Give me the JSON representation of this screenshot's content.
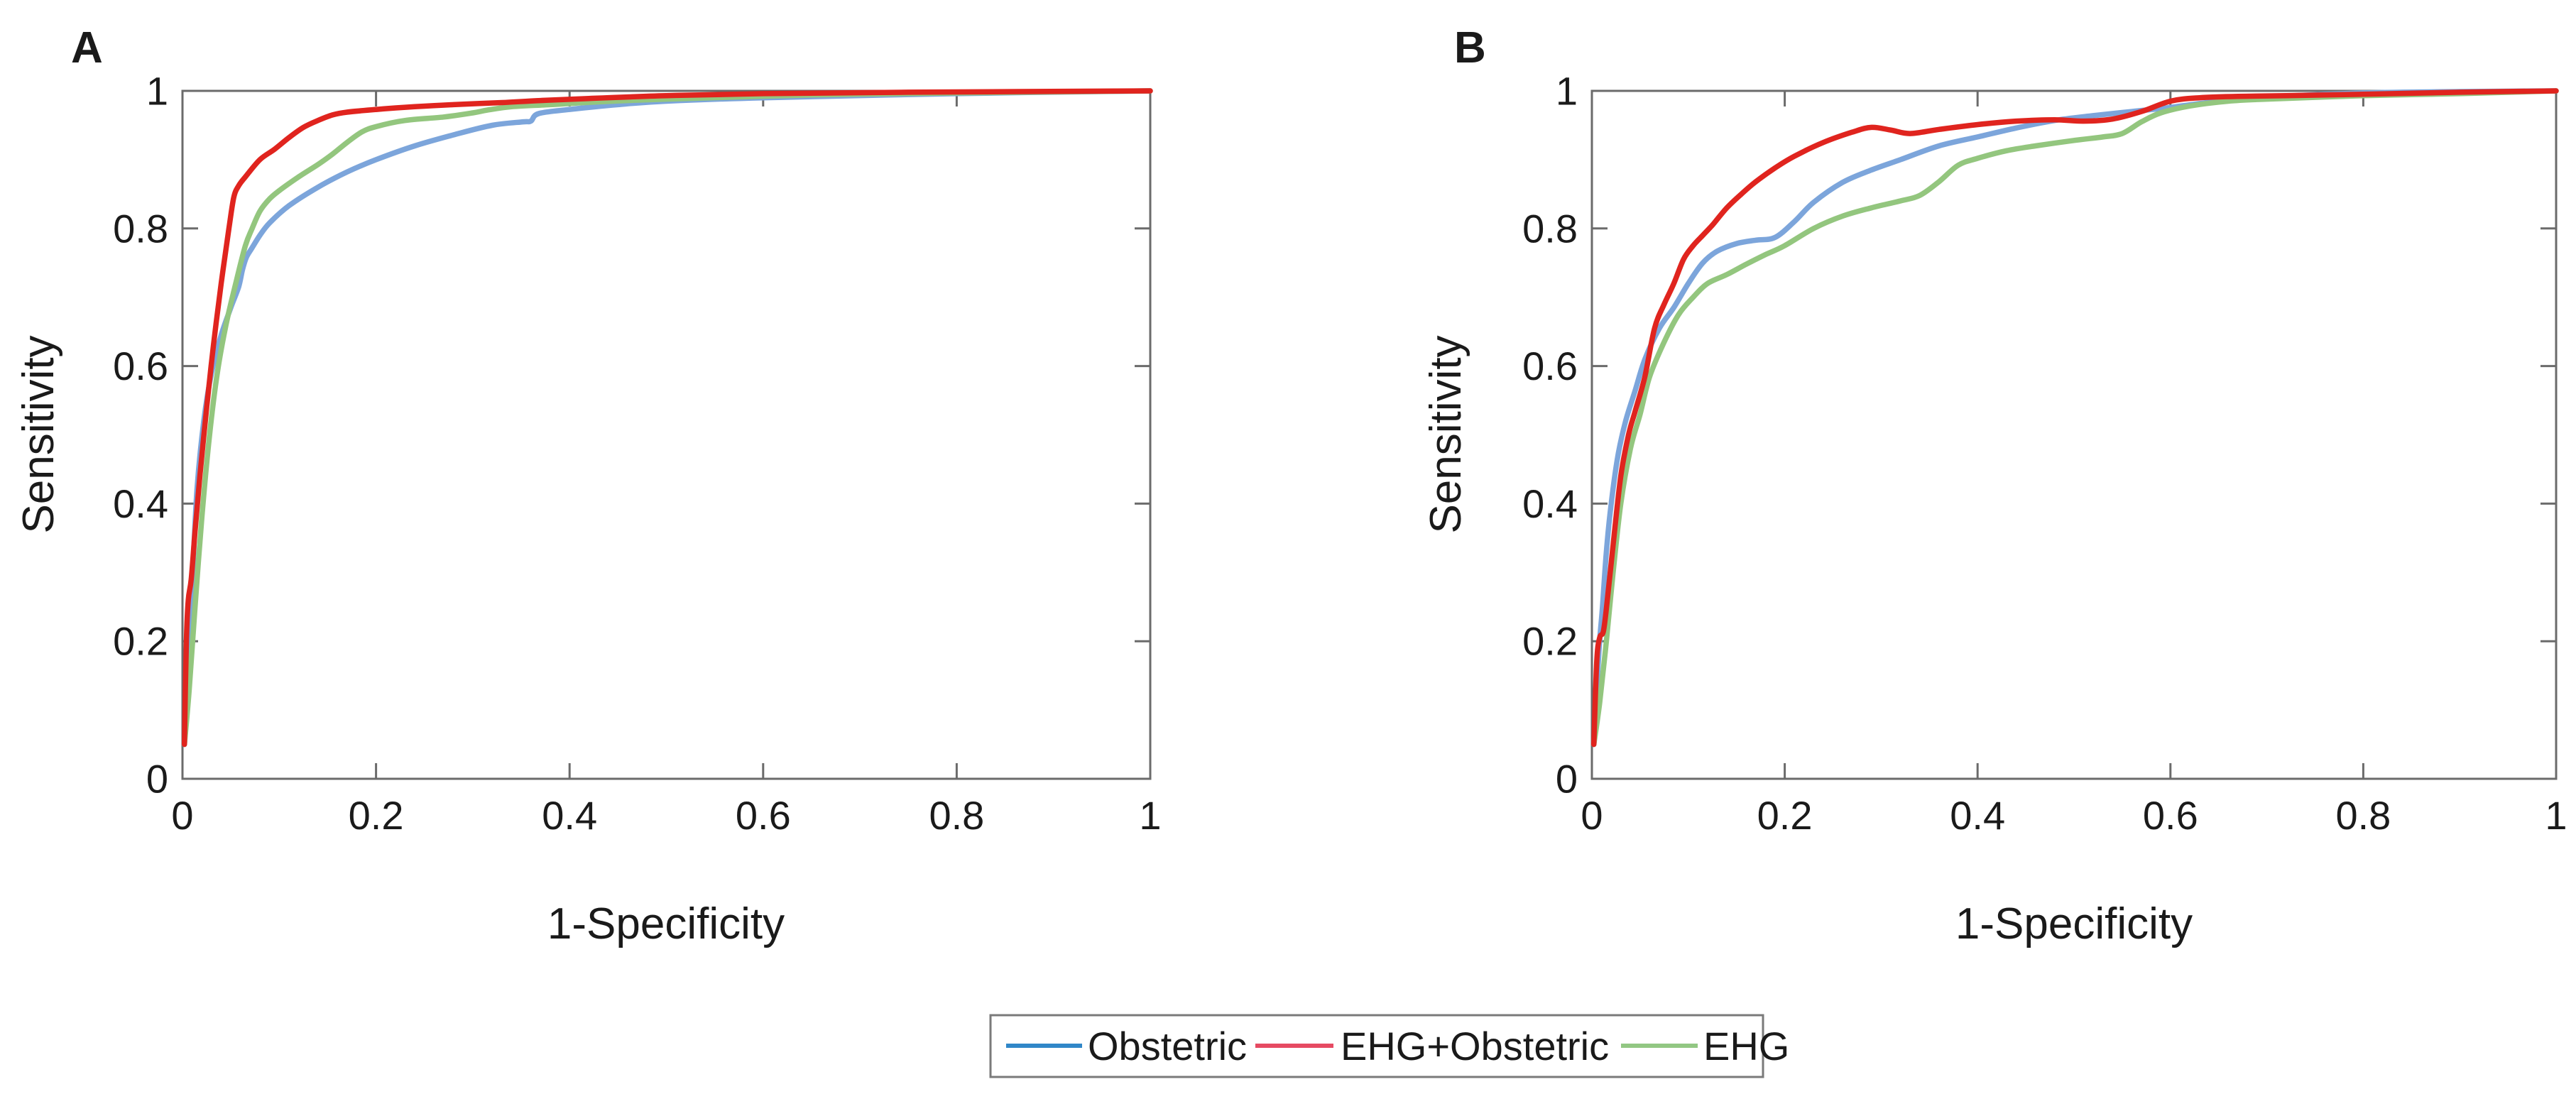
{
  "figure": {
    "background": "#ffffff",
    "axis_color": "#6b6b6b",
    "text_color": "#1a1a1a",
    "xlabel": "1-Specificity",
    "ylabel": "Sensitivity",
    "panels": [
      {
        "label": "A"
      },
      {
        "label": "B"
      }
    ]
  },
  "legend": {
    "items": [
      {
        "label": "Obstetric",
        "color": "#3087c8"
      },
      {
        "label": "EHG+Obstetric",
        "color": "#e64a62"
      },
      {
        "label": "EHG",
        "color": "#92c783"
      }
    ]
  },
  "chart_data": [
    {
      "type": "line",
      "panel": "A",
      "title": "",
      "xlabel": "1-Specificity",
      "ylabel": "Sensitivity",
      "xlim": [
        0,
        1
      ],
      "ylim": [
        0,
        1
      ],
      "grid": false,
      "x_ticks": [
        0,
        0.2,
        0.4,
        0.6,
        0.8,
        1
      ],
      "y_ticks": [
        0,
        0.2,
        0.4,
        0.6,
        0.8,
        1
      ],
      "series": [
        {
          "name": "Obstetric",
          "color": "#7ca5db",
          "x": [
            0.002,
            0.006,
            0.01,
            0.015,
            0.022,
            0.03,
            0.04,
            0.05,
            0.058,
            0.062,
            0.066,
            0.072,
            0.08,
            0.09,
            0.11,
            0.14,
            0.17,
            0.2,
            0.24,
            0.28,
            0.32,
            0.352,
            0.36,
            0.368,
            0.4,
            0.45,
            0.5,
            0.6,
            0.8,
            1.0
          ],
          "y": [
            0.05,
            0.15,
            0.28,
            0.42,
            0.52,
            0.59,
            0.645,
            0.685,
            0.715,
            0.74,
            0.758,
            0.772,
            0.79,
            0.808,
            0.833,
            0.86,
            0.882,
            0.9,
            0.92,
            0.936,
            0.95,
            0.955,
            0.956,
            0.967,
            0.973,
            0.98,
            0.985,
            0.99,
            0.996,
            1.0
          ]
        },
        {
          "name": "EHG",
          "color": "#93c67e",
          "x": [
            0.002,
            0.007,
            0.013,
            0.02,
            0.028,
            0.036,
            0.045,
            0.055,
            0.065,
            0.072,
            0.08,
            0.09,
            0.1,
            0.12,
            0.14,
            0.155,
            0.17,
            0.185,
            0.2,
            0.23,
            0.27,
            0.3,
            0.315,
            0.34,
            0.38,
            0.43,
            0.5,
            0.65,
            0.8,
            1.0
          ],
          "y": [
            0.05,
            0.13,
            0.25,
            0.38,
            0.5,
            0.59,
            0.66,
            0.72,
            0.775,
            0.8,
            0.825,
            0.843,
            0.855,
            0.875,
            0.893,
            0.908,
            0.925,
            0.94,
            0.948,
            0.957,
            0.962,
            0.968,
            0.972,
            0.977,
            0.98,
            0.984,
            0.988,
            0.994,
            0.997,
            1.0
          ]
        },
        {
          "name": "EHG+Obstetric",
          "color": "#e0241e",
          "x": [
            0.002,
            0.004,
            0.006,
            0.009,
            0.013,
            0.018,
            0.025,
            0.032,
            0.04,
            0.048,
            0.053,
            0.058,
            0.065,
            0.08,
            0.095,
            0.11,
            0.125,
            0.14,
            0.155,
            0.17,
            0.2,
            0.24,
            0.28,
            0.33,
            0.37,
            0.42,
            0.5,
            0.6,
            0.75,
            1.0
          ],
          "y": [
            0.05,
            0.2,
            0.26,
            0.29,
            0.36,
            0.44,
            0.54,
            0.63,
            0.72,
            0.8,
            0.845,
            0.862,
            0.875,
            0.9,
            0.915,
            0.932,
            0.947,
            0.957,
            0.965,
            0.969,
            0.973,
            0.977,
            0.98,
            0.983,
            0.986,
            0.989,
            0.993,
            0.996,
            0.998,
            1.0
          ]
        }
      ]
    },
    {
      "type": "line",
      "panel": "B",
      "title": "",
      "xlabel": "1-Specificity",
      "ylabel": "Sensitivity",
      "xlim": [
        0,
        1
      ],
      "ylim": [
        0,
        1
      ],
      "grid": false,
      "x_ticks": [
        0,
        0.2,
        0.4,
        0.6,
        0.8,
        1
      ],
      "y_ticks": [
        0,
        0.2,
        0.4,
        0.6,
        0.8,
        1
      ],
      "series": [
        {
          "name": "Obstetric",
          "color": "#7ca5db",
          "x": [
            0.002,
            0.005,
            0.008,
            0.011,
            0.015,
            0.02,
            0.027,
            0.035,
            0.045,
            0.055,
            0.07,
            0.085,
            0.1,
            0.115,
            0.13,
            0.15,
            0.17,
            0.19,
            0.21,
            0.23,
            0.26,
            0.29,
            0.32,
            0.36,
            0.4,
            0.44,
            0.48,
            0.52,
            0.56,
            0.6,
            0.65,
            0.7,
            0.8,
            0.9,
            1.0
          ],
          "y": [
            0.05,
            0.13,
            0.2,
            0.25,
            0.33,
            0.4,
            0.47,
            0.52,
            0.565,
            0.61,
            0.655,
            0.685,
            0.72,
            0.75,
            0.767,
            0.778,
            0.783,
            0.787,
            0.81,
            0.838,
            0.867,
            0.885,
            0.9,
            0.92,
            0.933,
            0.946,
            0.957,
            0.964,
            0.97,
            0.976,
            0.985,
            0.991,
            0.997,
            0.999,
            1.0
          ]
        },
        {
          "name": "EHG",
          "color": "#93c67e",
          "x": [
            0.002,
            0.008,
            0.015,
            0.022,
            0.03,
            0.04,
            0.05,
            0.06,
            0.075,
            0.09,
            0.105,
            0.12,
            0.14,
            0.16,
            0.18,
            0.2,
            0.23,
            0.26,
            0.29,
            0.32,
            0.34,
            0.36,
            0.38,
            0.4,
            0.43,
            0.46,
            0.5,
            0.53,
            0.55,
            0.57,
            0.59,
            0.62,
            0.66,
            0.7,
            0.8,
            0.9,
            1.0
          ],
          "y": [
            0.05,
            0.11,
            0.2,
            0.3,
            0.4,
            0.48,
            0.53,
            0.585,
            0.635,
            0.675,
            0.7,
            0.72,
            0.733,
            0.748,
            0.762,
            0.775,
            0.8,
            0.818,
            0.83,
            0.84,
            0.848,
            0.868,
            0.892,
            0.902,
            0.913,
            0.92,
            0.928,
            0.933,
            0.938,
            0.955,
            0.968,
            0.978,
            0.985,
            0.988,
            0.993,
            0.996,
            1.0
          ]
        },
        {
          "name": "EHG+Obstetric",
          "color": "#e0241e",
          "x": [
            0.002,
            0.005,
            0.008,
            0.012,
            0.016,
            0.022,
            0.03,
            0.038,
            0.045,
            0.055,
            0.065,
            0.075,
            0.085,
            0.095,
            0.105,
            0.115,
            0.125,
            0.14,
            0.155,
            0.17,
            0.19,
            0.21,
            0.24,
            0.27,
            0.29,
            0.31,
            0.33,
            0.36,
            0.4,
            0.44,
            0.48,
            0.51,
            0.54,
            0.57,
            0.6,
            0.63,
            0.67,
            0.72,
            0.8,
            0.9,
            1.0
          ],
          "y": [
            0.05,
            0.17,
            0.205,
            0.215,
            0.26,
            0.34,
            0.44,
            0.5,
            0.535,
            0.585,
            0.655,
            0.69,
            0.72,
            0.755,
            0.775,
            0.79,
            0.805,
            0.83,
            0.85,
            0.868,
            0.888,
            0.905,
            0.925,
            0.94,
            0.947,
            0.943,
            0.938,
            0.944,
            0.951,
            0.956,
            0.958,
            0.956,
            0.959,
            0.97,
            0.985,
            0.99,
            0.992,
            0.993,
            0.995,
            0.998,
            1.0
          ]
        }
      ]
    }
  ]
}
